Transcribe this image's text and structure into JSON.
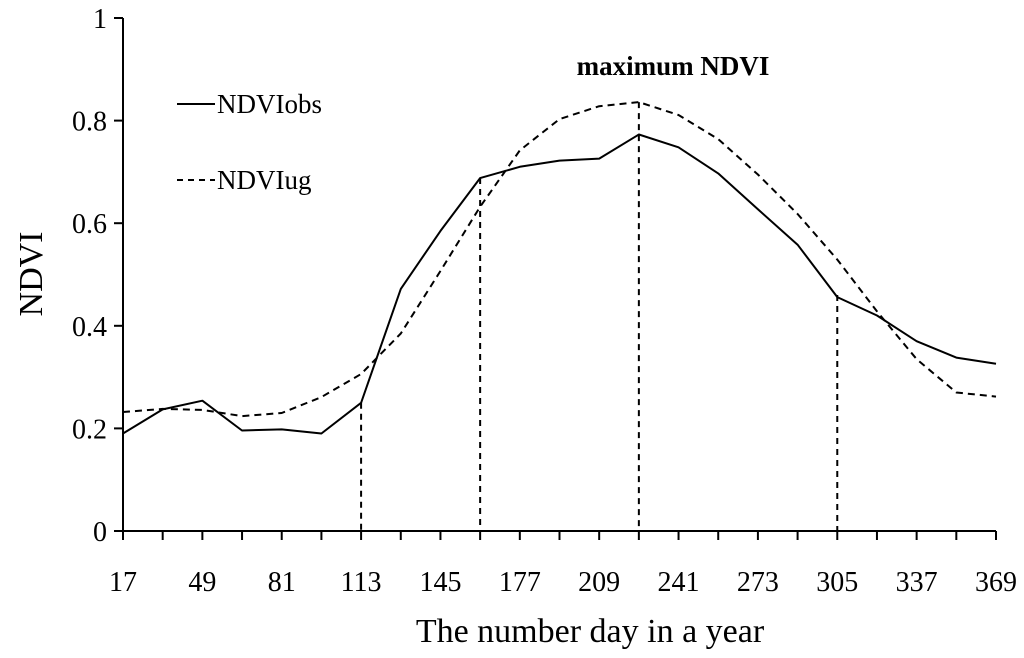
{
  "chart_data": {
    "type": "line",
    "title": "",
    "xlabel": "The number day in a year",
    "ylabel": "NDVI",
    "xlim": [
      17,
      369
    ],
    "ylim": [
      0,
      1
    ],
    "xticks": [
      17,
      49,
      81,
      113,
      145,
      177,
      209,
      241,
      273,
      305,
      337,
      369
    ],
    "xtick_labels": [
      "17",
      "49",
      "81",
      "113",
      "145",
      "177",
      "209",
      "241",
      "273",
      "305",
      "337",
      "369"
    ],
    "yticks": [
      0,
      0.2,
      0.4,
      0.6,
      0.8,
      1
    ],
    "ytick_labels": [
      "0",
      "0.2",
      "0.4",
      "0.6",
      "0.8",
      "1"
    ],
    "grid": false,
    "legend_position": "top-left",
    "series": [
      {
        "name": "NDVIobs",
        "style": "solid",
        "color": "#000000",
        "x": [
          17,
          33,
          49,
          65,
          81,
          97,
          113,
          129,
          145,
          161,
          177,
          193,
          209,
          225,
          241,
          257,
          273,
          289,
          305,
          321,
          337,
          353,
          369
        ],
        "values": [
          0.19,
          0.237,
          0.254,
          0.196,
          0.198,
          0.19,
          0.25,
          0.472,
          0.585,
          0.688,
          0.71,
          0.722,
          0.726,
          0.773,
          0.748,
          0.697,
          0.627,
          0.558,
          0.456,
          0.42,
          0.37,
          0.338,
          0.326
        ]
      },
      {
        "name": "NDVIug",
        "style": "dashed",
        "color": "#000000",
        "x": [
          17,
          33,
          49,
          65,
          81,
          97,
          113,
          129,
          145,
          161,
          177,
          193,
          209,
          225,
          241,
          257,
          273,
          289,
          305,
          321,
          337,
          353,
          369
        ],
        "values": [
          0.232,
          0.238,
          0.236,
          0.224,
          0.23,
          0.261,
          0.306,
          0.385,
          0.507,
          0.632,
          0.742,
          0.803,
          0.828,
          0.836,
          0.811,
          0.764,
          0.695,
          0.618,
          0.529,
          0.428,
          0.335,
          0.27,
          0.262
        ]
      }
    ],
    "vertical_markers": [
      {
        "x": 113,
        "y_top": 0.25
      },
      {
        "x": 161,
        "y_top": 0.688
      },
      {
        "x": 225,
        "y_top": 0.836
      },
      {
        "x": 305,
        "y_top": 0.46
      }
    ],
    "annotations": [
      {
        "text": "maximum NDVI",
        "x": 225
      }
    ]
  }
}
